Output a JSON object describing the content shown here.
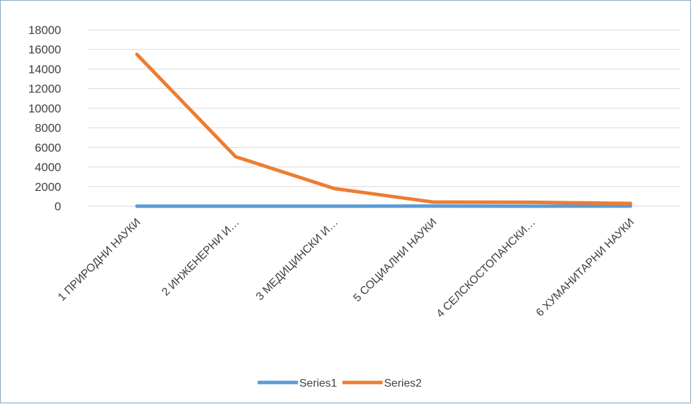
{
  "chart_data": {
    "type": "line",
    "title": "",
    "xlabel": "",
    "ylabel": "",
    "categories": [
      "1 ПРИРОДНИ НАУКИ",
      "2 ИНЖЕНЕРНИ И…",
      "3 МЕДИЦИНСКИ И…",
      "5 СОЦИАЛНИ НАУКИ",
      "4 СЕЛСКОСТОПАНСКИ…",
      "6 ХУМАНИТАРНИ НАУКИ"
    ],
    "ylim": [
      0,
      18000
    ],
    "yticks": [
      0,
      2000,
      4000,
      6000,
      8000,
      10000,
      12000,
      14000,
      16000,
      18000
    ],
    "grid": true,
    "legend_position": "bottom",
    "series": [
      {
        "name": "Series1",
        "color": "#5b9bd5",
        "values": [
          1,
          2,
          3,
          5,
          4,
          6
        ]
      },
      {
        "name": "Series2",
        "color": "#ed7d31",
        "values": [
          15500,
          5050,
          1800,
          420,
          400,
          280
        ]
      }
    ]
  }
}
